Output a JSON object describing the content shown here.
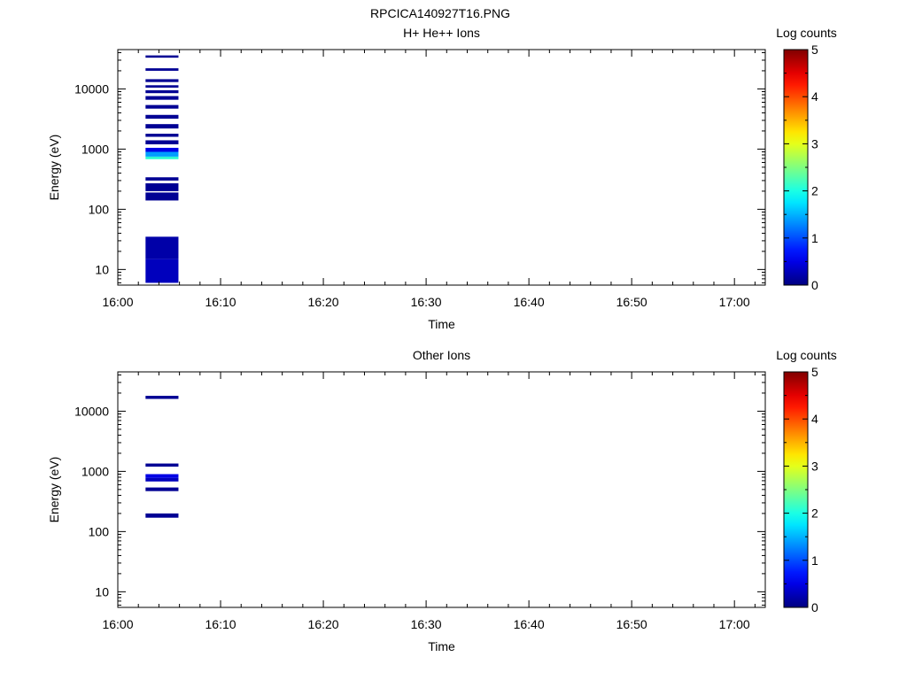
{
  "page": {
    "filename": "RPCICA140927T16.PNG"
  },
  "chart_data": [
    {
      "type": "heatmap",
      "title": "H+ He++ Ions",
      "xlabel": "Time",
      "ylabel": "Energy (eV)",
      "x_ticks": [
        "16:00",
        "16:10",
        "16:20",
        "16:30",
        "16:40",
        "16:50",
        "17:00"
      ],
      "x_range_minutes": [
        0,
        63
      ],
      "y_scale": "log",
      "y_range": [
        5.5,
        45000
      ],
      "y_ticks": [
        "10",
        "100",
        "1000",
        "10000"
      ],
      "colorbar": {
        "label": "Log counts",
        "range": [
          0,
          5
        ],
        "ticks": [
          "0",
          "1",
          "2",
          "3",
          "4",
          "5"
        ]
      },
      "columns": [
        {
          "t": [
            2.7,
            5.9
          ],
          "cells": [
            [
              6,
              15,
              0.3
            ],
            [
              15,
              35,
              0.2
            ],
            [
              140,
              190,
              0.1
            ],
            [
              200,
              270,
              0.1
            ],
            [
              300,
              340,
              0.1
            ],
            [
              680,
              750,
              2.1
            ],
            [
              750,
              900,
              1.4
            ],
            [
              900,
              1050,
              0.5
            ],
            [
              1200,
              1400,
              0.1
            ],
            [
              1600,
              1800,
              0.1
            ],
            [
              2200,
              2600,
              0.1
            ],
            [
              3200,
              3700,
              0.1
            ],
            [
              4700,
              5400,
              0.1
            ],
            [
              6600,
              7600,
              0.1
            ],
            [
              8500,
              9500,
              0.1
            ],
            [
              10500,
              11500,
              0.1
            ],
            [
              13000,
              14500,
              0.1
            ],
            [
              20000,
              22000,
              0.1
            ],
            [
              33000,
              36000,
              0.1
            ]
          ]
        }
      ]
    },
    {
      "type": "heatmap",
      "title": "Other Ions",
      "xlabel": "Time",
      "ylabel": "Energy (eV)",
      "x_ticks": [
        "16:00",
        "16:10",
        "16:20",
        "16:30",
        "16:40",
        "16:50",
        "17:00"
      ],
      "x_range_minutes": [
        0,
        63
      ],
      "y_scale": "log",
      "y_range": [
        5.5,
        45000
      ],
      "y_ticks": [
        "10",
        "100",
        "1000",
        "10000"
      ],
      "colorbar": {
        "label": "Log counts",
        "range": [
          0,
          5
        ],
        "ticks": [
          "0",
          "1",
          "2",
          "3",
          "4",
          "5"
        ]
      },
      "columns": [
        {
          "t": [
            2.7,
            5.9
          ],
          "cells": [
            [
              170,
              200,
              0.1
            ],
            [
              470,
              540,
              0.1
            ],
            [
              680,
              780,
              0.3
            ],
            [
              780,
              900,
              0.5
            ],
            [
              1200,
              1350,
              0.1
            ],
            [
              16000,
              18000,
              0.1
            ]
          ]
        }
      ]
    }
  ]
}
